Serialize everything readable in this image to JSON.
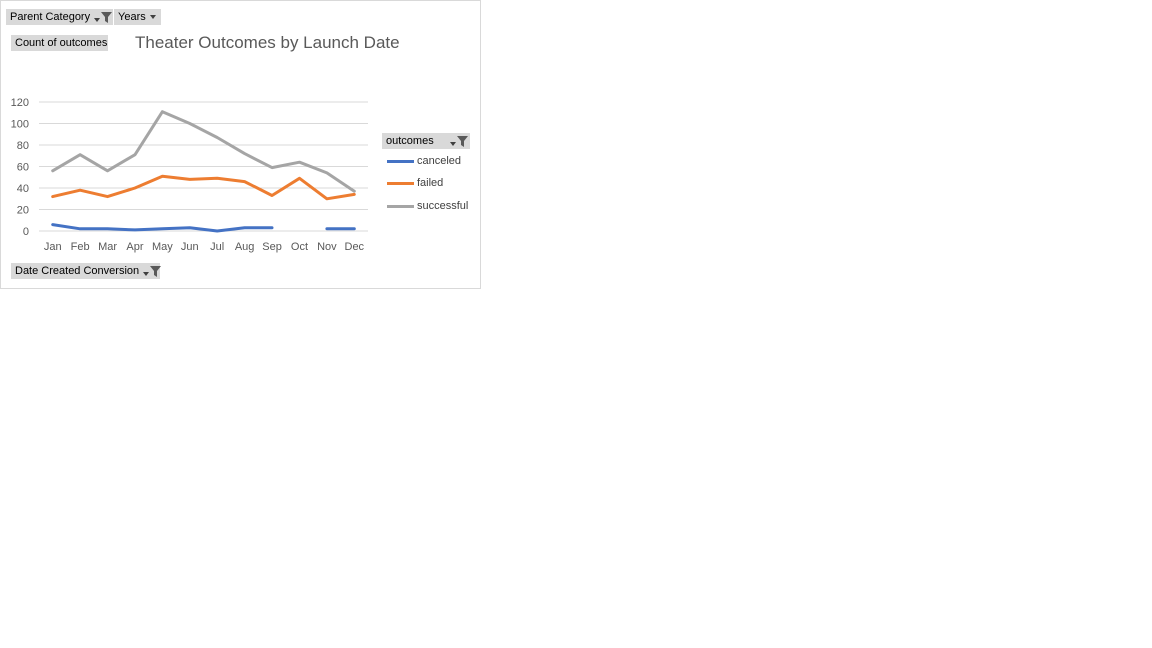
{
  "pivot_buttons": {
    "parent_category": "Parent Category",
    "years": "Years",
    "values": "Count of outcomes",
    "legend_field": "outcomes",
    "axis_field": "Date Created Conversion"
  },
  "colors": {
    "canceled": "#4472c4",
    "failed": "#ed7d31",
    "successful": "#a5a5a5",
    "gridline": "#d9d9d9",
    "button_bg": "#d9d9d9"
  },
  "chart_data": {
    "type": "line",
    "title": "Theater Outcomes by Launch Date",
    "xlabel": "",
    "ylabel": "",
    "ylim": [
      0,
      120
    ],
    "yticks": [
      0,
      20,
      40,
      60,
      80,
      100,
      120
    ],
    "categories": [
      "Jan",
      "Feb",
      "Mar",
      "Apr",
      "May",
      "Jun",
      "Jul",
      "Aug",
      "Sep",
      "Oct",
      "Nov",
      "Dec"
    ],
    "grid": true,
    "legend_position": "right",
    "series": [
      {
        "name": "canceled",
        "values": [
          6,
          2,
          2,
          1,
          2,
          3,
          0,
          3,
          3,
          null,
          2,
          2
        ]
      },
      {
        "name": "failed",
        "values": [
          32,
          38,
          32,
          40,
          51,
          48,
          49,
          46,
          33,
          49,
          30,
          34
        ]
      },
      {
        "name": "successful",
        "values": [
          56,
          71,
          56,
          71,
          111,
          100,
          87,
          72,
          59,
          64,
          54,
          37
        ]
      }
    ]
  }
}
